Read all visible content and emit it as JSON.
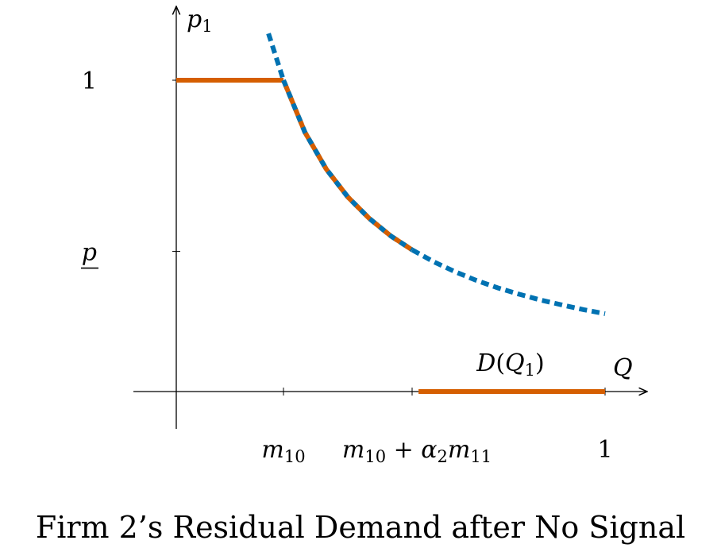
{
  "chart_data": {
    "type": "line",
    "title": "",
    "caption": "Firm 2’s Residual Demand after No Signal",
    "ylabel": "p",
    "ylabel_sub": "1",
    "xlabel": "Q",
    "xlim": [
      -0.1,
      1.1
    ],
    "ylim": [
      -0.12,
      1.25
    ],
    "x_ticks": [
      {
        "value": 0.25,
        "label": "m",
        "sub": "10"
      },
      {
        "value": 0.55,
        "label": "m",
        "sub": "10",
        "plus": " + ",
        "label2": "α",
        "sub2": "2",
        "label3": "m",
        "sub3": "11"
      },
      {
        "value": 1.0,
        "label": "1"
      }
    ],
    "y_ticks": [
      {
        "value": 1.0,
        "label": "1"
      },
      {
        "value": 0.45,
        "label": "p",
        "underline": true
      }
    ],
    "series": [
      {
        "name": "",
        "style": "dotted",
        "color": "#0072B2",
        "x": [
          0.215,
          0.25,
          0.3,
          0.35,
          0.4,
          0.45,
          0.5,
          0.55,
          0.6,
          0.65,
          0.7,
          0.75,
          0.8,
          0.85,
          0.9,
          0.95,
          1.0
        ],
        "y": [
          1.15,
          1.0,
          0.833,
          0.714,
          0.625,
          0.556,
          0.5,
          0.455,
          0.417,
          0.385,
          0.357,
          0.333,
          0.3125,
          0.294,
          0.278,
          0.263,
          0.25
        ]
      },
      {
        "name": "D(Q1)",
        "style": "solid",
        "color": "#D55E00",
        "segments": [
          {
            "x": [
              0.0,
              0.25
            ],
            "y": [
              1.0,
              1.0
            ]
          },
          {
            "x": [
              0.25,
              0.3,
              0.35,
              0.4,
              0.45,
              0.5,
              0.55
            ],
            "y": [
              1.0,
              0.833,
              0.714,
              0.625,
              0.556,
              0.5,
              0.455
            ]
          },
          {
            "x": [
              0.565,
              1.0
            ],
            "y": [
              0.0,
              0.0
            ]
          }
        ]
      }
    ],
    "annotation": {
      "text": "D(Q",
      "sub": "1",
      "close": ")",
      "x": 0.78,
      "y": 0.07,
      "color": "#D55E00"
    }
  }
}
